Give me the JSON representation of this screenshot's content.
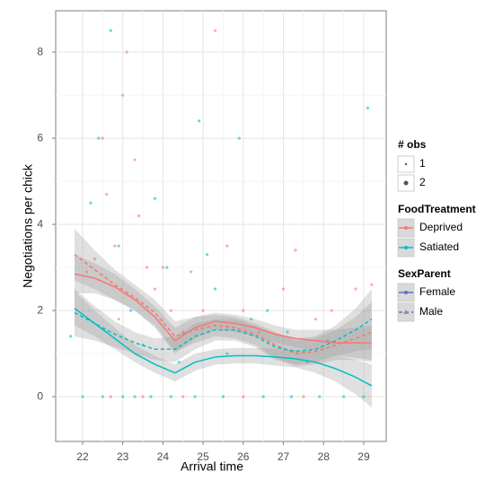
{
  "chart_data": {
    "type": "scatter-smooth",
    "x_label": "Arrival time",
    "y_label": "Negotiations per chick",
    "xlim": [
      21.33,
      29.56
    ],
    "ylim": [
      -1.04,
      8.96
    ],
    "xticks": [
      22,
      23,
      24,
      25,
      26,
      27,
      28,
      29
    ],
    "yticks": [
      0,
      2,
      4,
      6,
      8
    ],
    "grid": true,
    "size_legend": {
      "title": "# obs",
      "labels": [
        1,
        2
      ]
    },
    "color_legend_title": "FoodTreatment",
    "linetype_legend_title": "SexParent",
    "groups": [
      {
        "name": "Deprived",
        "color": "#F8766D"
      },
      {
        "name": "Satiated",
        "color": "#00BFC4"
      }
    ],
    "linetypes": [
      {
        "name": "Female",
        "dash": "solid"
      },
      {
        "name": "Male",
        "dash": "dashed"
      }
    ],
    "points": [
      {
        "group": 0,
        "x": [
          22.1,
          22.3,
          22.5,
          22.6,
          22.8,
          22.9,
          23.0,
          23.1,
          23.3,
          23.4,
          23.6,
          23.8,
          24.0,
          24.2,
          24.5,
          24.7,
          25.0,
          25.3,
          25.6,
          26.0,
          26.4,
          27.0,
          27.3,
          27.8,
          28.2,
          28.8,
          29.2,
          22.7,
          23.5,
          24.5,
          26.0,
          27.5
        ],
        "values": [
          2.9,
          3.2,
          6.0,
          4.7,
          3.5,
          1.8,
          7.0,
          8.0,
          5.5,
          4.2,
          3.0,
          2.5,
          3.0,
          2.0,
          1.5,
          2.9,
          2.0,
          8.5,
          3.5,
          2.0,
          1.5,
          2.5,
          3.4,
          1.8,
          2.0,
          2.5,
          2.6,
          0,
          0,
          0,
          0,
          0
        ]
      },
      {
        "group": 1,
        "x": [
          21.7,
          22.2,
          22.4,
          22.7,
          22.9,
          23.2,
          23.5,
          23.8,
          24.1,
          24.4,
          24.9,
          25.1,
          25.3,
          25.6,
          25.9,
          26.2,
          26.6,
          27.1,
          27.6,
          28.1,
          29.1,
          22.0,
          22.5,
          23.0,
          23.3,
          23.7,
          24.2,
          24.8,
          25.5,
          26.5,
          27.2,
          27.9,
          28.5,
          29.0
        ],
        "values": [
          1.4,
          4.5,
          6.0,
          8.5,
          3.5,
          2.0,
          1.2,
          4.6,
          3.0,
          0.8,
          6.4,
          3.3,
          2.5,
          1.0,
          6.0,
          1.8,
          2.0,
          1.5,
          0.8,
          1.3,
          6.7,
          0,
          0,
          0,
          0,
          0,
          0,
          0,
          0,
          0,
          0,
          0,
          0,
          0
        ]
      }
    ],
    "smooth_x": [
      21.8,
      22.3,
      22.8,
      23.3,
      23.8,
      24.3,
      24.8,
      25.3,
      25.8,
      26.3,
      26.8,
      27.3,
      27.8,
      28.3,
      28.8,
      29.2
    ],
    "smooths": [
      {
        "group": 0,
        "linetype": 0,
        "values": [
          2.85,
          2.75,
          2.55,
          2.25,
          1.85,
          1.3,
          1.6,
          1.75,
          1.7,
          1.6,
          1.45,
          1.35,
          1.3,
          1.25,
          1.25,
          1.25
        ],
        "lower": [
          2.4,
          2.4,
          2.25,
          2.0,
          1.6,
          1.0,
          1.35,
          1.55,
          1.5,
          1.4,
          1.25,
          1.15,
          1.05,
          0.95,
          0.9,
          0.85
        ],
        "upper": [
          3.3,
          3.1,
          2.85,
          2.5,
          2.1,
          1.6,
          1.85,
          1.95,
          1.9,
          1.8,
          1.65,
          1.55,
          1.55,
          1.55,
          1.6,
          1.65
        ]
      },
      {
        "group": 0,
        "linetype": 1,
        "values": [
          3.3,
          2.95,
          2.6,
          2.3,
          1.95,
          1.4,
          1.55,
          1.65,
          1.6,
          1.45,
          1.2,
          1.0,
          1.05,
          1.2,
          1.35,
          1.5
        ],
        "lower": [
          2.7,
          2.5,
          2.25,
          2.0,
          1.65,
          1.05,
          1.25,
          1.4,
          1.35,
          1.2,
          0.9,
          0.7,
          0.75,
          0.85,
          0.85,
          0.8
        ],
        "upper": [
          3.9,
          3.4,
          2.95,
          2.6,
          2.25,
          1.75,
          1.85,
          1.9,
          1.85,
          1.7,
          1.5,
          1.3,
          1.35,
          1.55,
          1.85,
          2.2
        ]
      },
      {
        "group": 1,
        "linetype": 0,
        "values": [
          2.05,
          1.7,
          1.35,
          1.0,
          0.75,
          0.55,
          0.8,
          0.92,
          0.95,
          0.95,
          0.92,
          0.88,
          0.8,
          0.65,
          0.45,
          0.25
        ],
        "lower": [
          1.65,
          1.4,
          1.1,
          0.8,
          0.55,
          0.35,
          0.6,
          0.74,
          0.77,
          0.77,
          0.72,
          0.68,
          0.55,
          0.35,
          0.05,
          -0.25
        ],
        "upper": [
          2.45,
          2.0,
          1.6,
          1.2,
          0.95,
          0.75,
          1.0,
          1.1,
          1.13,
          1.13,
          1.12,
          1.08,
          1.05,
          0.95,
          0.85,
          0.75
        ]
      },
      {
        "group": 1,
        "linetype": 1,
        "values": [
          1.95,
          1.7,
          1.45,
          1.25,
          1.1,
          1.1,
          1.4,
          1.55,
          1.55,
          1.4,
          1.15,
          1.05,
          1.1,
          1.3,
          1.55,
          1.8
        ],
        "lower": [
          1.4,
          1.3,
          1.15,
          1.0,
          0.85,
          0.8,
          1.1,
          1.3,
          1.3,
          1.15,
          0.85,
          0.75,
          0.8,
          0.95,
          1.05,
          1.1
        ],
        "upper": [
          2.5,
          2.1,
          1.75,
          1.5,
          1.35,
          1.4,
          1.7,
          1.8,
          1.8,
          1.65,
          1.45,
          1.35,
          1.4,
          1.65,
          2.05,
          2.5
        ]
      }
    ]
  }
}
